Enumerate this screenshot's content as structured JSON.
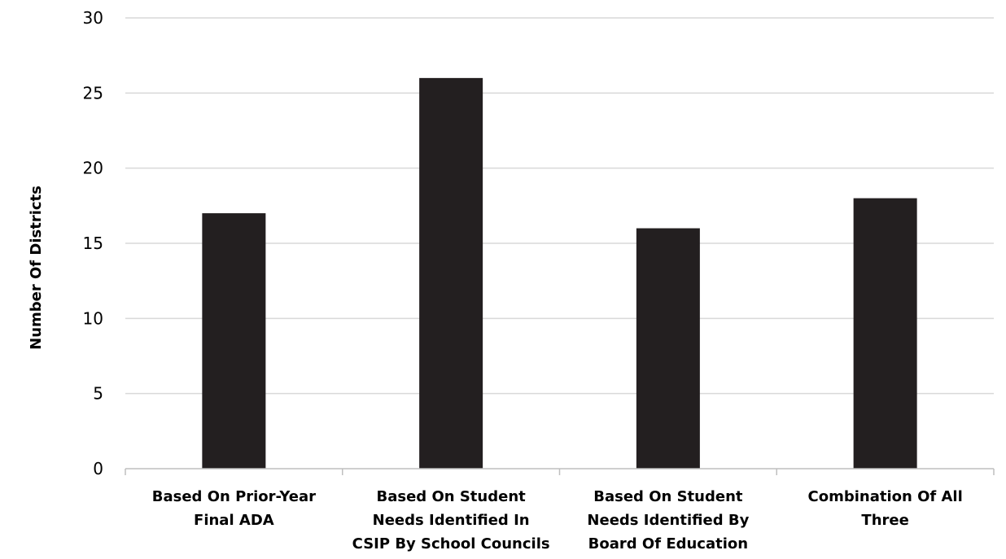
{
  "chart_data": {
    "type": "bar",
    "categories": [
      [
        "Based On Prior-Year",
        "Final ADA"
      ],
      [
        "Based On Student",
        "Needs Identified In",
        "CSIP By School Councils"
      ],
      [
        "Based On Student",
        "Needs Identified By",
        "Board Of Education"
      ],
      [
        "Combination Of All",
        "Three"
      ]
    ],
    "values": [
      17,
      26,
      16,
      18
    ],
    "ylabel": "Number Of Districts",
    "ylim": [
      0,
      30
    ],
    "yticks": [
      0,
      5,
      10,
      15,
      20,
      25,
      30
    ],
    "grid": true,
    "bar_color": "#231f20",
    "grid_color": "#d9d9d9",
    "axis_color": "#bfbfbf"
  }
}
